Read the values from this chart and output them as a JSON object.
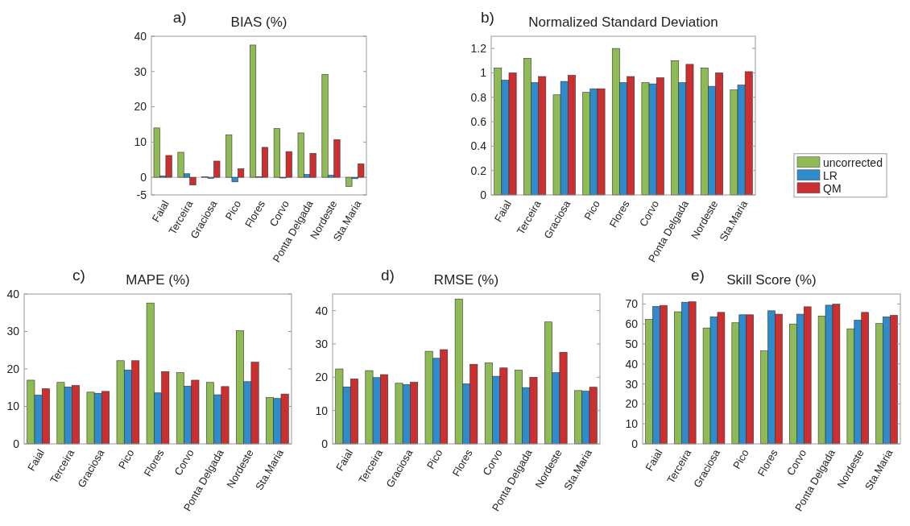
{
  "chart_data": [
    {
      "type": "bar",
      "title": "BIAS (%)",
      "annotations": [
        "a)"
      ],
      "categories": [
        "Faial",
        "Terceira",
        "Graciosa",
        "Pico",
        "Flores",
        "Corvo",
        "Ponta Delgada",
        "Nordeste",
        "Sta.Maria"
      ],
      "ylim": [
        -5,
        40
      ],
      "yticks": [
        -5,
        0,
        10,
        20,
        30,
        40
      ],
      "grid": false,
      "ref_lines": [
        {
          "axis": "y",
          "value": 0,
          "color": "#bbbbbb"
        }
      ],
      "series": [
        {
          "color": "#8fbb55",
          "values": [
            14,
            7.1,
            0.1,
            12,
            37.5,
            13.8,
            12.6,
            29.2,
            -2.6
          ]
        },
        {
          "color": "#2e8bcc",
          "values": [
            0.4,
            1.0,
            -0.3,
            -1.3,
            0.1,
            -0.2,
            0.8,
            0.6,
            -0.4
          ]
        },
        {
          "color": "#cc2f2f",
          "values": [
            6.2,
            -2.2,
            4.6,
            2.4,
            8.5,
            7.3,
            6.8,
            10.7,
            3.8
          ]
        }
      ]
    },
    {
      "type": "bar",
      "title": "Normalized Standard Deviation",
      "annotations": [
        "b)"
      ],
      "categories": [
        "Faial",
        "Terceira",
        "Graciosa",
        "Pico",
        "Flores",
        "Corvo",
        "Ponta Delgada",
        "Nordeste",
        "Sta.Maria"
      ],
      "ylim": [
        0,
        1.3
      ],
      "yticks": [
        0,
        0.2,
        0.4,
        0.6,
        0.8,
        1,
        1.2
      ],
      "grid": false,
      "legend": "right",
      "series": [
        {
          "name": "uncorrected",
          "color": "#8fbb55",
          "values": [
            1.04,
            1.12,
            0.82,
            0.84,
            1.2,
            0.92,
            1.1,
            1.04,
            0.86
          ]
        },
        {
          "name": "LR",
          "color": "#2e8bcc",
          "values": [
            0.94,
            0.92,
            0.93,
            0.87,
            0.92,
            0.91,
            0.92,
            0.89,
            0.9
          ]
        },
        {
          "name": "QM",
          "color": "#cc2f2f",
          "values": [
            1.0,
            0.97,
            0.98,
            0.87,
            0.97,
            0.96,
            1.07,
            1.0,
            1.01
          ]
        }
      ]
    },
    {
      "type": "bar",
      "title": "MAPE (%)",
      "annotations": [
        "c)"
      ],
      "categories": [
        "Faial",
        "Terceira",
        "Graciosa",
        "Pico",
        "Flores",
        "Corvo",
        "Ponta Delgada",
        "Nordeste",
        "Sta.Maria"
      ],
      "ylim": [
        0,
        40
      ],
      "yticks": [
        0,
        10,
        20,
        30,
        40
      ],
      "grid": false,
      "series": [
        {
          "color": "#8fbb55",
          "values": [
            17,
            16.4,
            13.8,
            22.2,
            37.6,
            19,
            16.4,
            30.2,
            12.4
          ]
        },
        {
          "color": "#2e8bcc",
          "values": [
            13,
            15.2,
            13.5,
            19.7,
            13.6,
            15.4,
            13.1,
            16.6,
            12.1
          ]
        },
        {
          "color": "#cc2f2f",
          "values": [
            14.7,
            15.6,
            14,
            22.2,
            19.3,
            17,
            15.3,
            21.8,
            13.3
          ]
        }
      ]
    },
    {
      "type": "bar",
      "title": "RMSE (%)",
      "annotations": [
        "d)"
      ],
      "categories": [
        "Faial",
        "Terceira",
        "Graciosa",
        "Pico",
        "Flores",
        "Corvo",
        "Ponta Delgada",
        "Nordeste",
        "Sta.Maria"
      ],
      "ylim": [
        0,
        45
      ],
      "yticks": [
        0,
        10,
        20,
        30,
        40
      ],
      "grid": false,
      "series": [
        {
          "color": "#8fbb55",
          "values": [
            22.5,
            22,
            18.2,
            27.8,
            43.5,
            24.3,
            22.1,
            36.6,
            16
          ]
        },
        {
          "color": "#2e8bcc",
          "values": [
            17.1,
            19.9,
            17.8,
            25.7,
            18,
            20.3,
            16.9,
            21.4,
            15.8
          ]
        },
        {
          "color": "#cc2f2f",
          "values": [
            19.5,
            20.8,
            18.5,
            28.3,
            23.9,
            22.8,
            20,
            27.5,
            17
          ]
        }
      ]
    },
    {
      "type": "bar",
      "title": "Skill Score (%)",
      "annotations": [
        "e)"
      ],
      "categories": [
        "Faial",
        "Terceira",
        "Graciosa",
        "Pico",
        "Flores",
        "Corvo",
        "Ponta Delgada",
        "Nordeste",
        "Sta.Maria"
      ],
      "ylim": [
        0,
        75
      ],
      "yticks": [
        0,
        10,
        20,
        30,
        40,
        50,
        60,
        70
      ],
      "grid": false,
      "series": [
        {
          "color": "#8fbb55",
          "values": [
            62.3,
            66.1,
            58,
            60.6,
            46.5,
            60,
            64,
            57.6,
            60.2
          ]
        },
        {
          "color": "#2e8bcc",
          "values": [
            68.8,
            70.9,
            63.6,
            64.6,
            66.6,
            64.9,
            69.4,
            61.9,
            63.6
          ]
        },
        {
          "color": "#cc2f2f",
          "values": [
            69.3,
            71.1,
            65.8,
            64.6,
            64.9,
            68.6,
            69.9,
            65.8,
            64.3
          ]
        }
      ]
    }
  ]
}
